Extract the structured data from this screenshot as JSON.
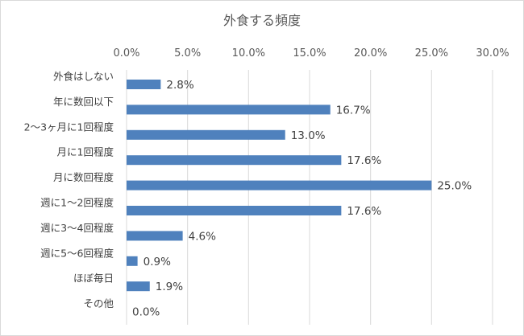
{
  "chart_data": {
    "type": "bar",
    "orientation": "horizontal",
    "title": "外食する頻度",
    "x_axis_position": "top",
    "xlim": [
      0,
      30
    ],
    "xticks": [
      0,
      5,
      10,
      15,
      20,
      25,
      30
    ],
    "xtick_labels": [
      "0.0%",
      "5.0%",
      "10.0%",
      "15.0%",
      "20.0%",
      "25.0%",
      "30.0%"
    ],
    "categories": [
      "外食はしない",
      "年に数回以下",
      "2～3ヶ月に1回程度",
      "月に1回程度",
      "月に数回程度",
      "週に1～2回程度",
      "週に3～4回程度",
      "週に5～6回程度",
      "ほぼ毎日",
      "その他"
    ],
    "values": [
      2.8,
      16.7,
      13.0,
      17.6,
      25.0,
      17.6,
      4.6,
      0.9,
      1.9,
      0.0
    ],
    "value_labels": [
      "2.8%",
      "16.7%",
      "13.0%",
      "17.6%",
      "25.0%",
      "17.6%",
      "4.6%",
      "0.9%",
      "1.9%",
      "0.0%"
    ],
    "bar_color": "#4f81bd",
    "grid": true,
    "legend": "none"
  }
}
